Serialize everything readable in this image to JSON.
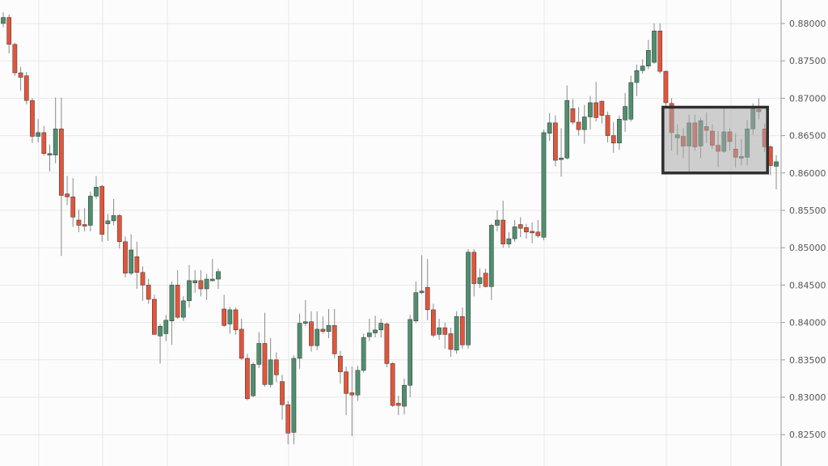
{
  "chart_data": {
    "type": "candlestick",
    "title": "",
    "xlabel": "",
    "ylabel": "",
    "ylim": [
      0.8225,
      0.883
    ],
    "grid": true,
    "y_axis_position": "right",
    "y_ticks": [
      "0.88000",
      "0.87500",
      "0.87000",
      "0.86500",
      "0.86000",
      "0.85500",
      "0.85000",
      "0.84500",
      "0.84000",
      "0.83500",
      "0.83000",
      "0.82500"
    ],
    "colors": {
      "up": "#4f8f6e",
      "down": "#e2553a",
      "wick": "#8a8a8a",
      "background": "#fcfcfc",
      "grid": "#e8e8e8",
      "highlight_fill": "#a8a8a8",
      "highlight_border": "#2e2e2e"
    },
    "highlight_box": {
      "from_candle": 113.5,
      "to_candle": 131.5,
      "price_low": 0.86,
      "price_high": 0.8688
    },
    "candles_ohlc": [
      [
        0.88,
        0.8815,
        0.8795,
        0.8808
      ],
      [
        0.8808,
        0.8812,
        0.876,
        0.8772
      ],
      [
        0.8772,
        0.8774,
        0.873,
        0.8734
      ],
      [
        0.8734,
        0.8742,
        0.871,
        0.8728
      ],
      [
        0.873,
        0.8735,
        0.8692,
        0.8697
      ],
      [
        0.8697,
        0.87,
        0.864,
        0.8649
      ],
      [
        0.8649,
        0.8672,
        0.8641,
        0.8654
      ],
      [
        0.8654,
        0.8663,
        0.8623,
        0.8626
      ],
      [
        0.8624,
        0.8638,
        0.8602,
        0.8626
      ],
      [
        0.8624,
        0.8701,
        0.8613,
        0.8659
      ],
      [
        0.8659,
        0.8701,
        0.8489,
        0.857
      ],
      [
        0.8572,
        0.8596,
        0.8557,
        0.8568
      ],
      [
        0.8568,
        0.8593,
        0.8528,
        0.8541
      ],
      [
        0.8537,
        0.8551,
        0.8521,
        0.853
      ],
      [
        0.8531,
        0.8553,
        0.8522,
        0.853
      ],
      [
        0.853,
        0.8575,
        0.8522,
        0.8569
      ],
      [
        0.8569,
        0.8596,
        0.8565,
        0.8581
      ],
      [
        0.8582,
        0.8584,
        0.8508,
        0.8518
      ],
      [
        0.8532,
        0.8545,
        0.8509,
        0.8536
      ],
      [
        0.8536,
        0.8565,
        0.853,
        0.8543
      ],
      [
        0.8543,
        0.8545,
        0.8499,
        0.8508
      ],
      [
        0.8508,
        0.8515,
        0.846,
        0.8466
      ],
      [
        0.8466,
        0.8518,
        0.8463,
        0.8497
      ],
      [
        0.8488,
        0.8508,
        0.8445,
        0.8467
      ],
      [
        0.8467,
        0.8475,
        0.8429,
        0.845
      ],
      [
        0.845,
        0.8458,
        0.8425,
        0.8431
      ],
      [
        0.8431,
        0.8437,
        0.8384,
        0.8384
      ],
      [
        0.8382,
        0.8398,
        0.8345,
        0.8395
      ],
      [
        0.8385,
        0.841,
        0.8375,
        0.8403
      ],
      [
        0.8402,
        0.8455,
        0.837,
        0.845
      ],
      [
        0.845,
        0.847,
        0.8405,
        0.8407
      ],
      [
        0.8407,
        0.8435,
        0.8402,
        0.8429
      ],
      [
        0.8429,
        0.8477,
        0.842,
        0.8456
      ],
      [
        0.8453,
        0.847,
        0.844,
        0.8456
      ],
      [
        0.8456,
        0.847,
        0.8435,
        0.8445
      ],
      [
        0.8445,
        0.8465,
        0.843,
        0.8458
      ],
      [
        0.8457,
        0.8485,
        0.8455,
        0.8458
      ],
      [
        0.8458,
        0.8472,
        0.8445,
        0.8468
      ],
      [
        0.8418,
        0.8437,
        0.8394,
        0.8396
      ],
      [
        0.8398,
        0.8421,
        0.8385,
        0.8417
      ],
      [
        0.8417,
        0.842,
        0.8384,
        0.839
      ],
      [
        0.8391,
        0.8405,
        0.835,
        0.8352
      ],
      [
        0.8352,
        0.8358,
        0.8296,
        0.8298
      ],
      [
        0.8302,
        0.8347,
        0.83,
        0.8344
      ],
      [
        0.8344,
        0.8387,
        0.8339,
        0.8372
      ],
      [
        0.8372,
        0.8413,
        0.8314,
        0.8317
      ],
      [
        0.8317,
        0.8379,
        0.8313,
        0.835
      ],
      [
        0.835,
        0.836,
        0.832,
        0.833
      ],
      [
        0.8321,
        0.833,
        0.827,
        0.829
      ],
      [
        0.829,
        0.8295,
        0.8237,
        0.8252
      ],
      [
        0.8253,
        0.8356,
        0.8237,
        0.8352
      ],
      [
        0.8352,
        0.8412,
        0.8338,
        0.8399
      ],
      [
        0.84,
        0.843,
        0.8395,
        0.8401
      ],
      [
        0.8401,
        0.8415,
        0.8361,
        0.8369
      ],
      [
        0.8369,
        0.8415,
        0.8363,
        0.8391
      ],
      [
        0.8391,
        0.8408,
        0.8385,
        0.8388
      ],
      [
        0.8388,
        0.8418,
        0.8379,
        0.8396
      ],
      [
        0.8396,
        0.8418,
        0.8352,
        0.8358
      ],
      [
        0.8355,
        0.8362,
        0.8318,
        0.8334
      ],
      [
        0.8334,
        0.8341,
        0.8276,
        0.8305
      ],
      [
        0.8306,
        0.8341,
        0.8248,
        0.8303
      ],
      [
        0.8303,
        0.8342,
        0.8295,
        0.8336
      ],
      [
        0.8336,
        0.8385,
        0.8333,
        0.838
      ],
      [
        0.8381,
        0.8405,
        0.8375,
        0.8386
      ],
      [
        0.8386,
        0.8409,
        0.838,
        0.839
      ],
      [
        0.839,
        0.8405,
        0.838,
        0.8399
      ],
      [
        0.8398,
        0.84,
        0.834,
        0.8345
      ],
      [
        0.8345,
        0.8347,
        0.8287,
        0.8289
      ],
      [
        0.8292,
        0.8302,
        0.8276,
        0.8289
      ],
      [
        0.8288,
        0.8325,
        0.8277,
        0.8316
      ],
      [
        0.8316,
        0.841,
        0.83,
        0.8404
      ],
      [
        0.8402,
        0.8455,
        0.8399,
        0.844
      ],
      [
        0.844,
        0.849,
        0.8438,
        0.8442
      ],
      [
        0.8447,
        0.8485,
        0.8403,
        0.8417
      ],
      [
        0.8417,
        0.8425,
        0.838,
        0.8383
      ],
      [
        0.8384,
        0.8405,
        0.8377,
        0.8393
      ],
      [
        0.8393,
        0.84,
        0.8365,
        0.8384
      ],
      [
        0.8385,
        0.8393,
        0.8354,
        0.8364
      ],
      [
        0.8363,
        0.8415,
        0.8358,
        0.8408
      ],
      [
        0.8408,
        0.842,
        0.8365,
        0.837
      ],
      [
        0.837,
        0.8498,
        0.8365,
        0.8494
      ],
      [
        0.8494,
        0.8498,
        0.8435,
        0.8452
      ],
      [
        0.8452,
        0.8472,
        0.8446,
        0.846
      ],
      [
        0.8466,
        0.8472,
        0.8447,
        0.8448
      ],
      [
        0.8448,
        0.8532,
        0.843,
        0.853
      ],
      [
        0.853,
        0.855,
        0.8522,
        0.8537
      ],
      [
        0.8537,
        0.8563,
        0.85,
        0.8505
      ],
      [
        0.8505,
        0.8521,
        0.85,
        0.8512
      ],
      [
        0.8512,
        0.8537,
        0.8508,
        0.8528
      ],
      [
        0.8531,
        0.8541,
        0.8514,
        0.8526
      ],
      [
        0.8527,
        0.8532,
        0.8512,
        0.8521
      ],
      [
        0.8522,
        0.8534,
        0.8506,
        0.8521
      ],
      [
        0.8521,
        0.8537,
        0.8513,
        0.8516
      ],
      [
        0.8514,
        0.8658,
        0.851,
        0.8654
      ],
      [
        0.8653,
        0.868,
        0.8643,
        0.8667
      ],
      [
        0.8667,
        0.8677,
        0.8609,
        0.8617
      ],
      [
        0.8618,
        0.866,
        0.8595,
        0.862
      ],
      [
        0.862,
        0.8717,
        0.8618,
        0.8697
      ],
      [
        0.8686,
        0.8699,
        0.8665,
        0.8668
      ],
      [
        0.8668,
        0.8688,
        0.865,
        0.8658
      ],
      [
        0.8658,
        0.8691,
        0.8639,
        0.8675
      ],
      [
        0.8675,
        0.8703,
        0.8658,
        0.8694
      ],
      [
        0.8694,
        0.8722,
        0.8669,
        0.8674
      ],
      [
        0.8696,
        0.8697,
        0.8666,
        0.8677
      ],
      [
        0.8677,
        0.8682,
        0.8641,
        0.865
      ],
      [
        0.865,
        0.8668,
        0.8627,
        0.864
      ],
      [
        0.864,
        0.8677,
        0.8631,
        0.8672
      ],
      [
        0.8671,
        0.8707,
        0.8655,
        0.8689
      ],
      [
        0.8672,
        0.873,
        0.8669,
        0.8721
      ],
      [
        0.8721,
        0.8745,
        0.8703,
        0.8737
      ],
      [
        0.8737,
        0.8752,
        0.8733,
        0.8743
      ],
      [
        0.8743,
        0.8778,
        0.8739,
        0.8764
      ],
      [
        0.8748,
        0.88,
        0.8746,
        0.879
      ],
      [
        0.879,
        0.88,
        0.8733,
        0.8736
      ],
      [
        0.8736,
        0.8737,
        0.8688,
        0.8694
      ],
      [
        0.8693,
        0.87,
        0.863,
        0.8654
      ],
      [
        0.8647,
        0.8665,
        0.8624,
        0.8651
      ],
      [
        0.8649,
        0.866,
        0.862,
        0.8636
      ],
      [
        0.8636,
        0.8678,
        0.86,
        0.8667
      ],
      [
        0.8667,
        0.8678,
        0.863,
        0.8635
      ],
      [
        0.8636,
        0.8674,
        0.862,
        0.867
      ],
      [
        0.8662,
        0.8681,
        0.864,
        0.8657
      ],
      [
        0.8656,
        0.8665,
        0.8632,
        0.8637
      ],
      [
        0.8637,
        0.8656,
        0.8608,
        0.8629
      ],
      [
        0.8629,
        0.8689,
        0.8627,
        0.8655
      ],
      [
        0.8655,
        0.866,
        0.863,
        0.8642
      ],
      [
        0.8632,
        0.8653,
        0.8607,
        0.8621
      ],
      [
        0.8621,
        0.8645,
        0.861,
        0.8622
      ],
      [
        0.8621,
        0.8671,
        0.861,
        0.8659
      ],
      [
        0.8659,
        0.8693,
        0.8651,
        0.8686
      ],
      [
        0.8685,
        0.87,
        0.8672,
        0.8682
      ],
      [
        0.8659,
        0.8666,
        0.8628,
        0.8635
      ],
      [
        0.8635,
        0.8637,
        0.8597,
        0.861
      ],
      [
        0.8609,
        0.8624,
        0.8578,
        0.8615
      ]
    ]
  }
}
